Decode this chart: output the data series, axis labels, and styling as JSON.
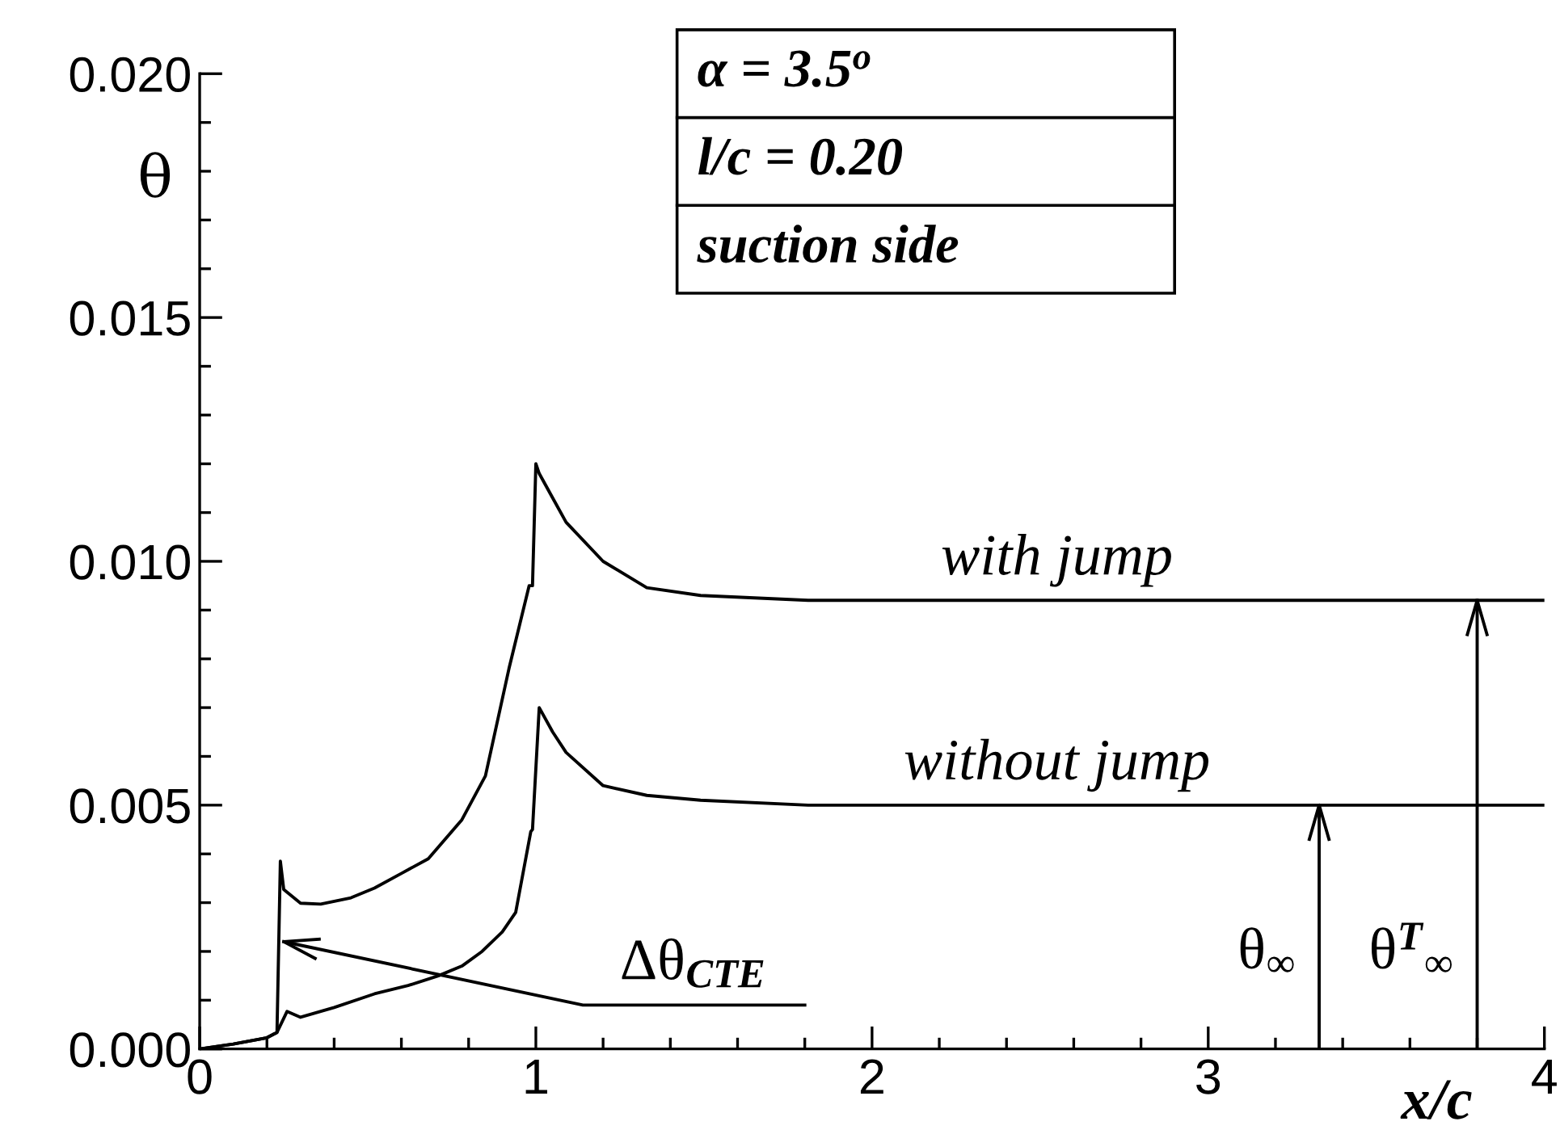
{
  "chart_data": {
    "type": "line",
    "xlabel": "x/c",
    "ylabel": "θ",
    "xlim": [
      0,
      4
    ],
    "xticks": [
      0,
      1,
      2,
      3,
      4
    ],
    "ylim": [
      0,
      0.02
    ],
    "yticks": [
      {
        "value": 0,
        "label": "0.000"
      },
      {
        "value": 0.005,
        "label": "0.005"
      },
      {
        "value": 0.01,
        "label": "0.010"
      },
      {
        "value": 0.015,
        "label": "0.015"
      },
      {
        "value": 0.02,
        "label": "0.020"
      }
    ],
    "grid": false,
    "legend": false,
    "marker": "none",
    "line_style": "solid",
    "series": [
      {
        "color": "#000000",
        "x": [
          0,
          0.1,
          0.2,
          0.23,
          0.24,
          0.25,
          0.3,
          0.36,
          0.45,
          0.52,
          0.6,
          0.68,
          0.78,
          0.85,
          0.92,
          0.98,
          0.99,
          1.0,
          1.01,
          1.05,
          1.09,
          1.2,
          1.33,
          1.49,
          1.81,
          2.5,
          4.0
        ],
        "values": [
          0,
          0.0001,
          0.00023,
          0.00034,
          0.00385,
          0.00327,
          0.00299,
          0.00297,
          0.0031,
          0.0033,
          0.0036,
          0.0039,
          0.0047,
          0.0056,
          0.0078,
          0.0095,
          0.0095,
          0.012,
          0.0118,
          0.0113,
          0.0108,
          0.01,
          0.00946,
          0.0093,
          0.0092,
          0.0092,
          0.0092
        ]
      },
      {
        "color": "#000000",
        "x": [
          0,
          0.1,
          0.2,
          0.23,
          0.26,
          0.3,
          0.4,
          0.52,
          0.62,
          0.71,
          0.78,
          0.84,
          0.9,
          0.94,
          0.985,
          0.99,
          1.01,
          1.05,
          1.09,
          1.2,
          1.33,
          1.49,
          1.81,
          2.5,
          4.0
        ],
        "values": [
          0,
          0.0001,
          0.00023,
          0.00034,
          0.00077,
          0.00065,
          0.00085,
          0.00113,
          0.0013,
          0.0015,
          0.0017,
          0.002,
          0.0024,
          0.0028,
          0.00446,
          0.0045,
          0.007,
          0.0065,
          0.00608,
          0.0054,
          0.0052,
          0.0051,
          0.005,
          0.005,
          0.005
        ]
      },
      {
        "color": "#000000",
        "x": [
          1.8,
          1.14,
          0.25
        ],
        "values": [
          0.0009,
          0.0009,
          0.0022
        ]
      },
      {
        "color": "#000000",
        "x": [
          3.33,
          3.33
        ],
        "values": [
          0,
          0.005
        ]
      },
      {
        "color": "#000000",
        "x": [
          3.8,
          3.8
        ],
        "values": [
          0,
          0.0092
        ]
      }
    ],
    "annotations": [
      "α = 3.5$^{o}$",
      "l/c = 0.20",
      "suction side",
      {
        "text": "with jump",
        "x": 2.55,
        "y": 0.0092
      },
      {
        "text": "without jump",
        "x": 2.55,
        "y": 0.005
      },
      {
        "text": "Δθ$_{CTE}$",
        "x": 1.45,
        "y": 0.0009
      },
      {
        "text": "θ$_{∞}$",
        "x": 3.33,
        "y": 0.0014
      },
      {
        "text": "θ$^{T}$$_{∞}$",
        "x": 3.8,
        "y": 0.0014
      }
    ]
  }
}
